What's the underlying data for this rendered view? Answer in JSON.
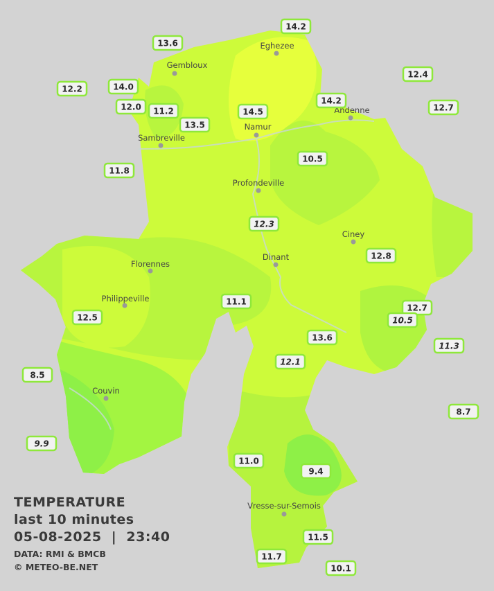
{
  "legend": {
    "title": "TEMPERATURE",
    "period": "last 10 minutes",
    "timestamp": "05-08-2025  |  23:40",
    "source": "DATA: RMI & BMCB",
    "credit": "© METEO-BE.NET"
  },
  "cities": [
    "Eghezee",
    "Gembloux",
    "Andenne",
    "Namur",
    "Sambreville",
    "Profondeville",
    "Ciney",
    "Dinant",
    "Florennes",
    "Philippeville",
    "Couvin",
    "Vresse-sur-Semois"
  ],
  "stations": [
    {
      "reading": "13.6"
    },
    {
      "reading": "14.2"
    },
    {
      "reading": "12.2"
    },
    {
      "reading": "14.0"
    },
    {
      "reading": "12.4"
    },
    {
      "reading": "12.0"
    },
    {
      "reading": "11.2"
    },
    {
      "reading": "14.5"
    },
    {
      "reading": "14.2"
    },
    {
      "reading": "12.7"
    },
    {
      "reading": "13.5"
    },
    {
      "reading": "10.5"
    },
    {
      "reading": "11.8"
    },
    {
      "reading": "12.3",
      "italic": true
    },
    {
      "reading": "12.8"
    },
    {
      "reading": "11.1"
    },
    {
      "reading": "12.7"
    },
    {
      "reading": "10.5",
      "italic": true
    },
    {
      "reading": "12.5"
    },
    {
      "reading": "13.6"
    },
    {
      "reading": "11.3",
      "italic": true
    },
    {
      "reading": "12.1",
      "italic": true
    },
    {
      "reading": "8.5"
    },
    {
      "reading": "8.7"
    },
    {
      "reading": "9.9",
      "italic": true
    },
    {
      "reading": "11.0"
    },
    {
      "reading": "9.4"
    },
    {
      "reading": "11.5"
    },
    {
      "reading": "11.7"
    },
    {
      "reading": "10.1"
    }
  ]
}
